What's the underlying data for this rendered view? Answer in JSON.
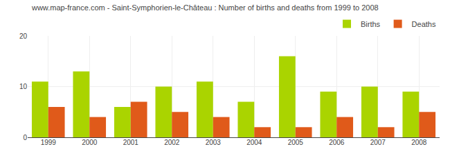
{
  "chart_data": {
    "type": "bar",
    "title": "www.map-france.com - Saint-Symphorien-le-Château : Number of births and deaths from 1999 to 2008",
    "categories": [
      "1999",
      "2000",
      "2001",
      "2002",
      "2003",
      "2004",
      "2005",
      "2006",
      "2007",
      "2008"
    ],
    "series": [
      {
        "name": "Births",
        "color": "#aad400",
        "values": [
          11,
          13,
          6,
          10,
          11,
          7,
          16,
          9,
          10,
          9
        ]
      },
      {
        "name": "Deaths",
        "color": "#e05a1a",
        "values": [
          6,
          4,
          7,
          5,
          4,
          2,
          2,
          4,
          2,
          5
        ]
      }
    ],
    "ylim": [
      0,
      20
    ],
    "yticks": [
      0,
      10,
      20
    ],
    "grid": true,
    "legend": "upper right"
  }
}
